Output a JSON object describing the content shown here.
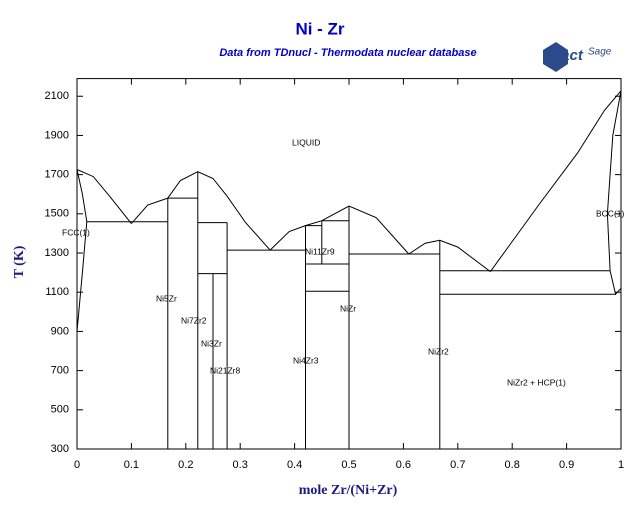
{
  "chart_data": {
    "type": "phase-diagram",
    "title": "Ni - Zr",
    "subtitle": "Data from TDnucl - Thermodata nuclear database",
    "logo_main": "Fact",
    "logo_sup": "Sage",
    "x_label": "mole Zr/(Ni+Zr)",
    "y_label": "T (K)",
    "xlim": [
      0,
      1
    ],
    "ylim": [
      300,
      2190
    ],
    "xticks": [
      0,
      0.1,
      0.2,
      0.3,
      0.4,
      0.5,
      0.6,
      0.7,
      0.8,
      0.9,
      1
    ],
    "yticks": [
      300,
      500,
      700,
      900,
      1100,
      1300,
      1500,
      1700,
      1900,
      2100
    ],
    "color": "#000000",
    "region_labels": [
      "LIQUID",
      "FCC(1)",
      "Ni5Zr",
      "Ni7Zr2",
      "Ni3Zr",
      "Ni21Zr8",
      "Ni11Zr9",
      "Ni4Zr3",
      "NiZr",
      "NiZr2",
      "NiZr2 + HCP(1)",
      "BCC(1)"
    ],
    "boundaries": [
      {
        "x": [
          0,
          0.03,
          0.06,
          0.1
        ],
        "y": [
          1726,
          1690,
          1590,
          1450
        ]
      },
      {
        "x": [
          0.1,
          0.13,
          0.167
        ],
        "y": [
          1450,
          1545,
          1580
        ]
      },
      {
        "x": [
          0.167,
          0.19,
          0.222,
          0.25,
          0.276,
          0.31,
          0.355
        ],
        "y": [
          1580,
          1670,
          1715,
          1680,
          1590,
          1455,
          1315
        ]
      },
      {
        "x": [
          0.355,
          0.39,
          0.42,
          0.45
        ],
        "y": [
          1315,
          1410,
          1440,
          1465
        ]
      },
      {
        "x": [
          0.45,
          0.5,
          0.55,
          0.61
        ],
        "y": [
          1465,
          1540,
          1480,
          1295
        ]
      },
      {
        "x": [
          0.61,
          0.64,
          0.667,
          0.7,
          0.76
        ],
        "y": [
          1295,
          1350,
          1365,
          1330,
          1205
        ]
      },
      {
        "x": [
          0.76,
          0.85,
          0.92,
          0.97,
          1
        ],
        "y": [
          1205,
          1550,
          1810,
          2030,
          2128
        ]
      },
      {
        "x": [
          0,
          0.01,
          0.018,
          0.01,
          0
        ],
        "y": [
          1726,
          1600,
          1460,
          1200,
          900
        ]
      },
      {
        "x": [
          1,
          0.985,
          0.975,
          0.98,
          0.99,
          1
        ],
        "y": [
          2128,
          1900,
          1500,
          1210,
          1090,
          1120
        ]
      },
      {
        "x": [
          0.018,
          0.167
        ],
        "y": [
          1460,
          1460
        ]
      },
      {
        "x": [
          0.167,
          0.222
        ],
        "y": [
          1580,
          1580
        ]
      },
      {
        "x": [
          0.222,
          0.276
        ],
        "y": [
          1455,
          1455
        ]
      },
      {
        "x": [
          0.222,
          0.276
        ],
        "y": [
          1195,
          1195
        ]
      },
      {
        "x": [
          0.276,
          0.42
        ],
        "y": [
          1315,
          1315
        ]
      },
      {
        "x": [
          0.42,
          0.45
        ],
        "y": [
          1440,
          1440
        ]
      },
      {
        "x": [
          0.45,
          0.5
        ],
        "y": [
          1465,
          1465
        ]
      },
      {
        "x": [
          0.42,
          0.5
        ],
        "y": [
          1244,
          1244
        ]
      },
      {
        "x": [
          0.42,
          0.5
        ],
        "y": [
          1105,
          1105
        ]
      },
      {
        "x": [
          0.5,
          0.667
        ],
        "y": [
          1295,
          1295
        ]
      },
      {
        "x": [
          0.667,
          0.98
        ],
        "y": [
          1210,
          1210
        ]
      },
      {
        "x": [
          0.667,
          0.99
        ],
        "y": [
          1090,
          1090
        ]
      },
      {
        "x": [
          0.167,
          0.167
        ],
        "y": [
          300,
          1580
        ]
      },
      {
        "x": [
          0.222,
          0.222
        ],
        "y": [
          300,
          1715
        ]
      },
      {
        "x": [
          0.25,
          0.25
        ],
        "y": [
          300,
          1195
        ]
      },
      {
        "x": [
          0.276,
          0.276
        ],
        "y": [
          300,
          1455
        ]
      },
      {
        "x": [
          0.42,
          0.42
        ],
        "y": [
          300,
          1440
        ]
      },
      {
        "x": [
          0.45,
          0.45
        ],
        "y": [
          1244,
          1465
        ]
      },
      {
        "x": [
          0.5,
          0.5
        ],
        "y": [
          300,
          1540
        ]
      },
      {
        "x": [
          0.667,
          0.667
        ],
        "y": [
          300,
          1365
        ]
      }
    ]
  }
}
